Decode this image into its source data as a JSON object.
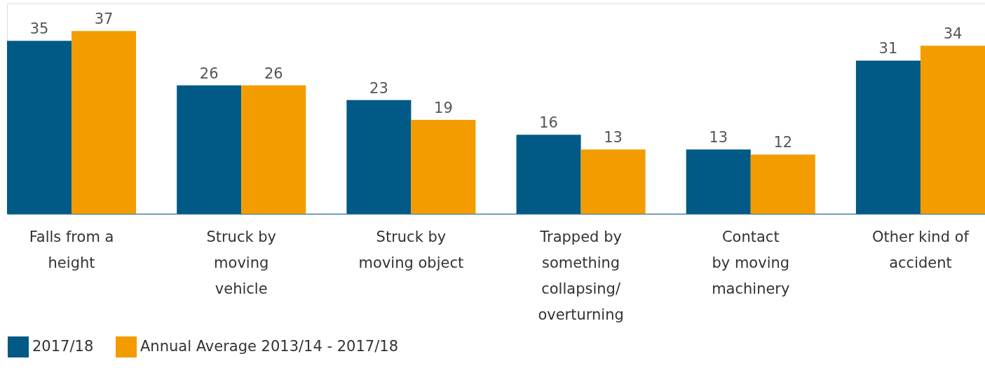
{
  "chart_data": {
    "type": "bar",
    "categories": [
      "Falls from a\nheight",
      "Struck by\nmoving\nvehicle",
      "Struck by\nmoving object",
      "Trapped by\nsomething\ncollapsing/\noverturning",
      "Contact\nby moving\nmachinery",
      "Other kind of\naccident"
    ],
    "series": [
      {
        "name": "2017/18",
        "color": "#005a85",
        "values": [
          35,
          26,
          23,
          16,
          13,
          31
        ]
      },
      {
        "name": "Annual Average 2013/14 - 2017/18",
        "color": "#f39c00",
        "values": [
          37,
          26,
          19,
          13,
          12,
          34
        ]
      }
    ],
    "data_labels": true,
    "grid": false,
    "legend": "bottom"
  }
}
